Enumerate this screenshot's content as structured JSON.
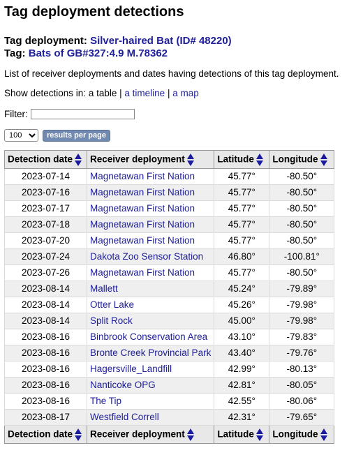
{
  "title": "Tag deployment detections",
  "deployment": {
    "label": "Tag deployment:",
    "value": "Silver-haired Bat (ID# 48220)",
    "tag_label": "Tag:",
    "tag_value": "Bats of GB#327:4.9 M.78362"
  },
  "description": "List of receiver deployments and dates having detections of this tag deployment.",
  "show": {
    "prefix": "Show detections in: a table |",
    "timeline": "a timeline",
    "sep": "|",
    "map": "a map"
  },
  "filter": {
    "label": "Filter:",
    "value": ""
  },
  "results": {
    "selected": "100",
    "button": "results per page"
  },
  "table": {
    "headers": [
      "Detection date",
      "Receiver deployment",
      "Latitude",
      "Longitude"
    ],
    "rows": [
      [
        "2023-07-14",
        "Magnetawan First Nation",
        "45.77°",
        "-80.50°"
      ],
      [
        "2023-07-16",
        "Magnetawan First Nation",
        "45.77°",
        "-80.50°"
      ],
      [
        "2023-07-17",
        "Magnetawan First Nation",
        "45.77°",
        "-80.50°"
      ],
      [
        "2023-07-18",
        "Magnetawan First Nation",
        "45.77°",
        "-80.50°"
      ],
      [
        "2023-07-20",
        "Magnetawan First Nation",
        "45.77°",
        "-80.50°"
      ],
      [
        "2023-07-24",
        "Dakota Zoo Sensor Station",
        "46.80°",
        "-100.81°"
      ],
      [
        "2023-07-26",
        "Magnetawan First Nation",
        "45.77°",
        "-80.50°"
      ],
      [
        "2023-08-14",
        "Mallett",
        "45.24°",
        "-79.89°"
      ],
      [
        "2023-08-14",
        "Otter Lake",
        "45.26°",
        "-79.98°"
      ],
      [
        "2023-08-14",
        "Split Rock",
        "45.00°",
        "-79.98°"
      ],
      [
        "2023-08-16",
        "Binbrook Conservation Area",
        "43.10°",
        "-79.83°"
      ],
      [
        "2023-08-16",
        "Bronte Creek Provincial Park",
        "43.40°",
        "-79.76°"
      ],
      [
        "2023-08-16",
        "Hagersville_Landfill",
        "42.99°",
        "-80.13°"
      ],
      [
        "2023-08-16",
        "Nanticoke OPG",
        "42.81°",
        "-80.05°"
      ],
      [
        "2023-08-16",
        "The Tip",
        "42.55°",
        "-80.06°"
      ],
      [
        "2023-08-17",
        "Westfield Correll",
        "42.31°",
        "-79.65°"
      ]
    ]
  }
}
